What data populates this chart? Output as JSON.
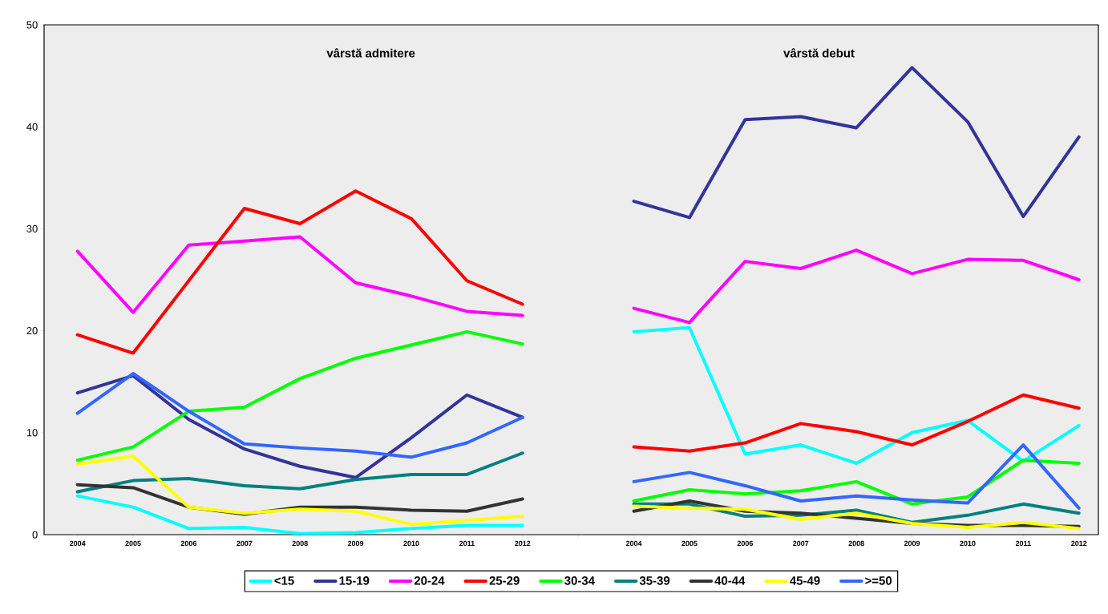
{
  "chart_data": {
    "type": "line",
    "annotations": [
      "vârstă admitere",
      "vârstă debut"
    ],
    "categories": [
      "2004",
      "2005",
      "2006",
      "2007",
      "2008",
      "2009",
      "2010",
      "2011",
      "2012",
      null,
      "2004",
      "2005",
      "2006",
      "2007",
      "2008",
      "2009",
      "2010",
      "2011",
      "2012"
    ],
    "ylim": [
      0,
      50
    ],
    "yticks": [
      0,
      10,
      20,
      30,
      40,
      50
    ],
    "grid": false,
    "legend": "bottom",
    "series": [
      {
        "name": "<15",
        "color": "#00ffff",
        "values": [
          3.8,
          2.7,
          0.6,
          0.7,
          0.1,
          0.2,
          0.6,
          0.9,
          0.9,
          null,
          19.9,
          20.3,
          7.9,
          8.8,
          7.0,
          10.0,
          11.2,
          7.2,
          10.7
        ]
      },
      {
        "name": "15-19",
        "color": "#333399",
        "values": [
          13.9,
          15.6,
          11.3,
          8.4,
          6.7,
          5.6,
          9.5,
          13.7,
          11.5,
          null,
          32.7,
          31.1,
          40.7,
          41.0,
          39.9,
          45.8,
          40.5,
          31.2,
          39.0
        ]
      },
      {
        "name": "20-24",
        "color": "#ff00ff",
        "values": [
          27.8,
          21.8,
          28.4,
          28.8,
          29.2,
          24.7,
          23.4,
          21.9,
          21.5,
          null,
          22.2,
          20.8,
          26.8,
          26.1,
          27.9,
          25.6,
          27.0,
          26.9,
          25.0
        ]
      },
      {
        "name": "25-29",
        "color": "#ff0000",
        "values": [
          19.6,
          17.8,
          24.9,
          32.0,
          30.5,
          33.7,
          31.0,
          24.9,
          22.6,
          null,
          8.6,
          8.2,
          9.0,
          10.9,
          10.1,
          8.8,
          11.1,
          13.7,
          12.4
        ]
      },
      {
        "name": "30-34",
        "color": "#00ff00",
        "values": [
          7.3,
          8.6,
          12.1,
          12.5,
          15.3,
          17.3,
          18.6,
          19.9,
          18.7,
          null,
          3.3,
          4.4,
          4.0,
          4.3,
          5.2,
          3.0,
          3.7,
          7.3,
          7.0
        ]
      },
      {
        "name": "35-39",
        "color": "#008080",
        "values": [
          4.2,
          5.3,
          5.5,
          4.8,
          4.5,
          5.4,
          5.9,
          5.9,
          8.0,
          null,
          3.0,
          3.0,
          1.8,
          1.9,
          2.4,
          1.2,
          1.9,
          3.0,
          2.1
        ]
      },
      {
        "name": "40-44",
        "color": "#333333",
        "values": [
          4.9,
          4.6,
          2.7,
          2.0,
          2.7,
          2.7,
          2.4,
          2.3,
          3.5,
          null,
          2.3,
          3.3,
          2.3,
          2.1,
          1.6,
          1.1,
          0.9,
          0.9,
          0.8
        ]
      },
      {
        "name": "45-49",
        "color": "#ffff00",
        "values": [
          6.9,
          7.7,
          2.7,
          2.1,
          2.5,
          2.3,
          1.0,
          1.4,
          1.8,
          null,
          2.8,
          2.6,
          2.5,
          1.5,
          2.1,
          1.1,
          0.7,
          1.2,
          0.6
        ]
      },
      {
        "name": ">=50",
        "color": "#3366ff",
        "values": [
          11.9,
          15.8,
          12.1,
          8.9,
          8.5,
          8.2,
          7.6,
          9.0,
          11.5,
          null,
          5.2,
          6.1,
          4.8,
          3.3,
          3.8,
          3.4,
          3.1,
          8.8,
          2.6
        ]
      }
    ]
  }
}
